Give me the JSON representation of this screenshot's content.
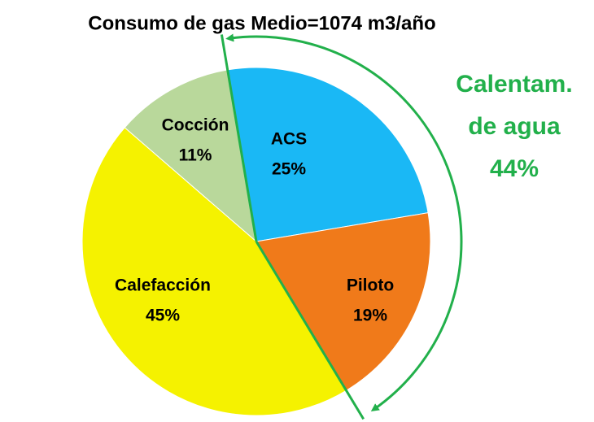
{
  "chart_data": {
    "type": "pie",
    "title": "Consumo de gas  Medio=1074 m3/año",
    "categories": [
      "ACS",
      "Piloto",
      "Calefacción",
      "Cocción"
    ],
    "values": [
      25,
      19,
      45,
      11
    ],
    "value_labels": [
      "25%",
      "19%",
      "45%",
      "11%"
    ],
    "colors": [
      "#1ab8f5",
      "#f07a1a",
      "#f5f200",
      "#b9d89b"
    ],
    "annotation": [
      "Calentam.",
      "de agua",
      "44%"
    ],
    "annotation_color": "#22b04b"
  }
}
